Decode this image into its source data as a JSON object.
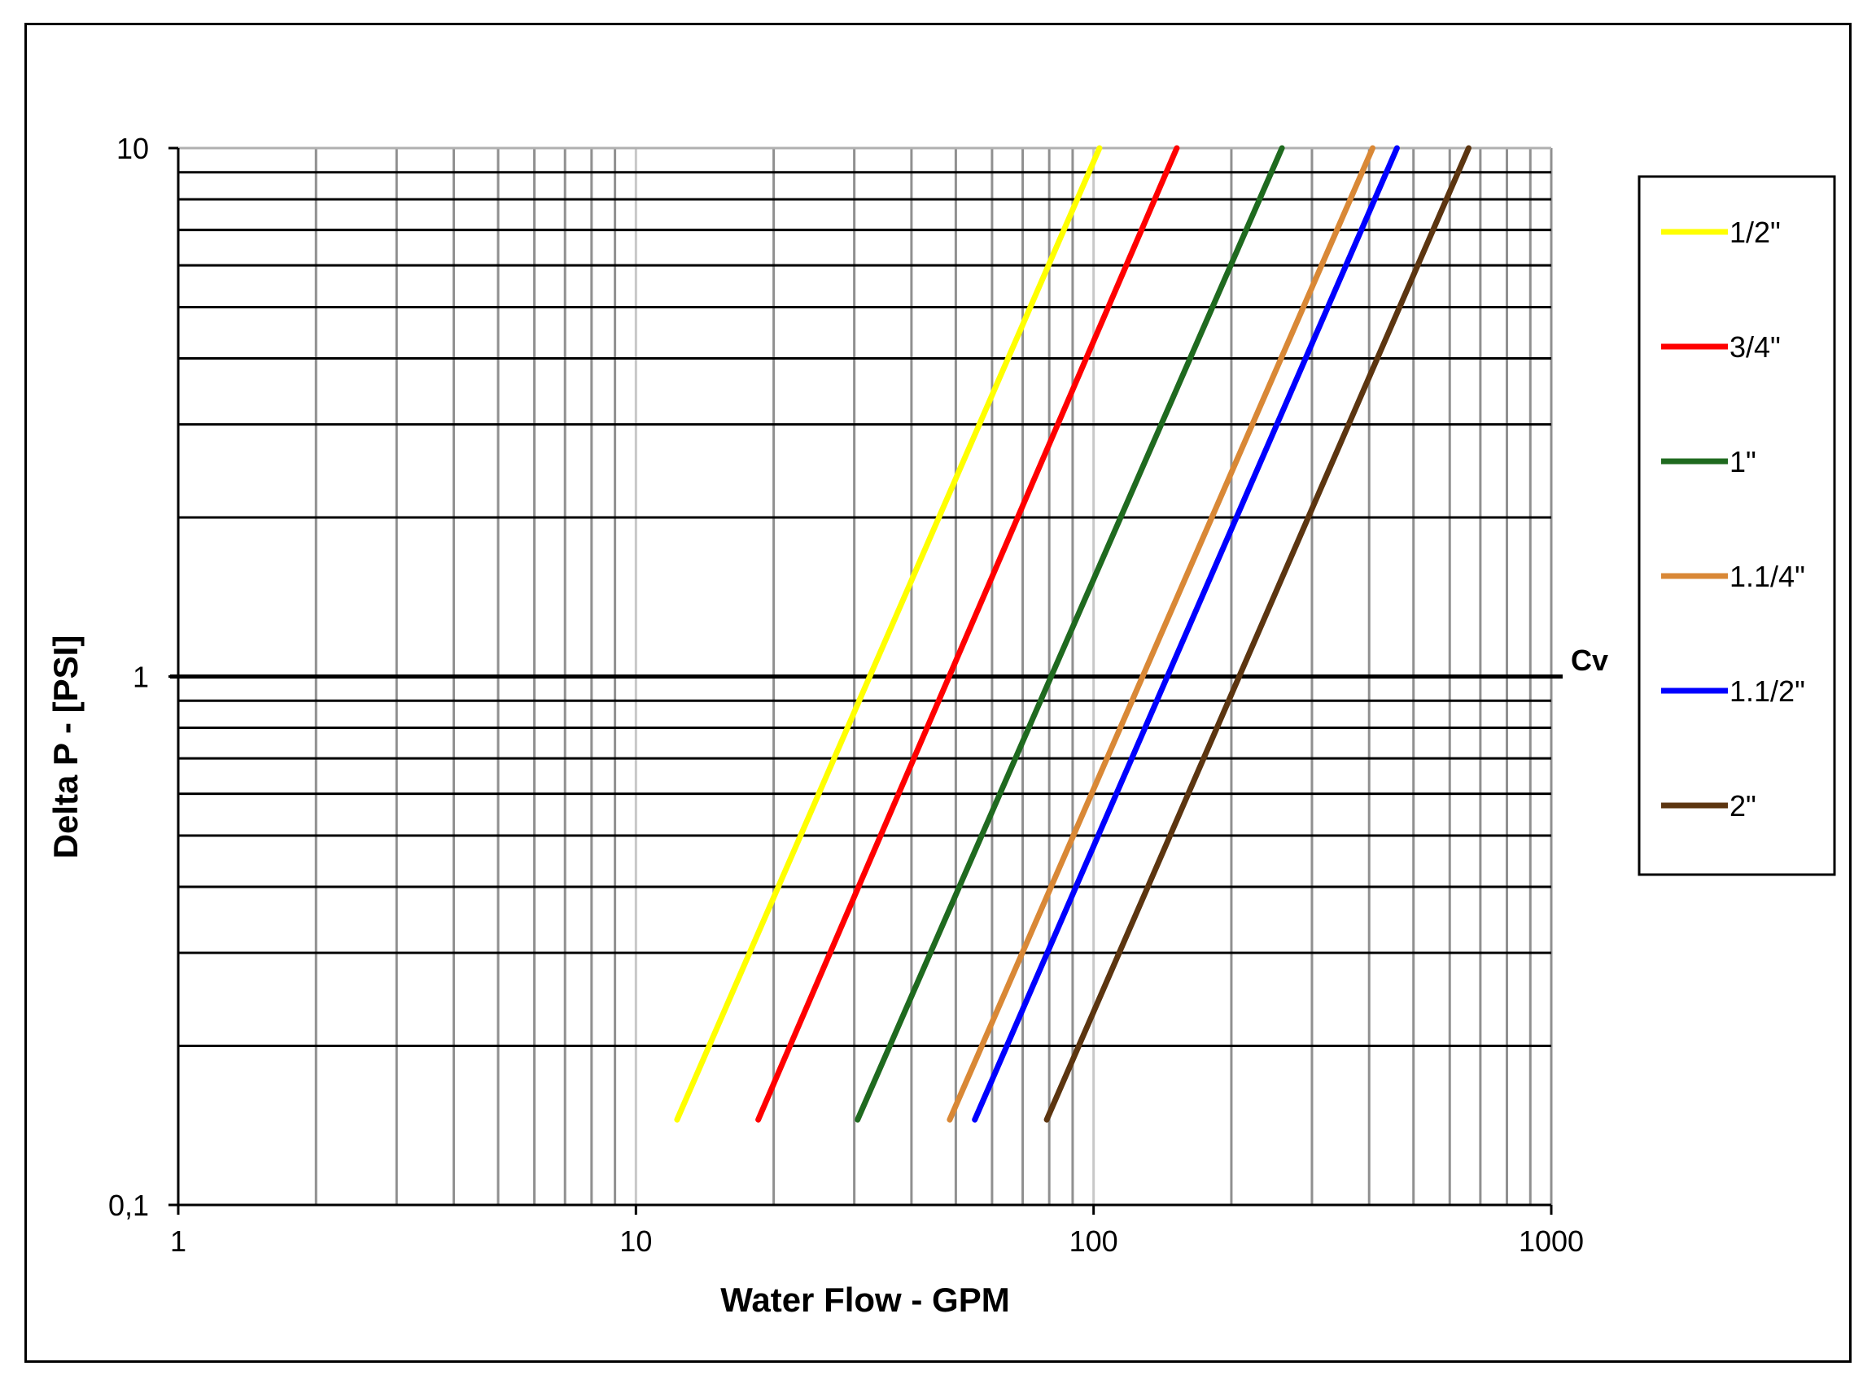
{
  "chart_data": {
    "type": "line",
    "x_scale": "log",
    "y_scale": "log",
    "xlim": [
      1,
      1000
    ],
    "ylim": [
      0.1,
      10
    ],
    "xlabel": "Water Flow  - GPM",
    "ylabel": "Delta P - [PSI]",
    "x_tick_labels": [
      "1",
      "10",
      "100",
      "1000"
    ],
    "x_tick_values": [
      1,
      10,
      100,
      1000
    ],
    "y_tick_labels": [
      "0,1",
      "1",
      "10"
    ],
    "y_tick_values": [
      0.1,
      1,
      10
    ],
    "grid": true,
    "legend_position": "right",
    "annotation": {
      "text": "Cv",
      "y": 1
    },
    "series": [
      {
        "name": "1/2\"",
        "color": "#ffff00",
        "x": [
          12.3,
          103
        ],
        "y": [
          0.145,
          10
        ]
      },
      {
        "name": "3/4\"",
        "color": "#ff0000",
        "x": [
          18.5,
          152
        ],
        "y": [
          0.145,
          10
        ]
      },
      {
        "name": "1\"",
        "color": "#1f6a1f",
        "x": [
          30.5,
          258
        ],
        "y": [
          0.145,
          10
        ]
      },
      {
        "name": "1.1/4\"",
        "color": "#d98836",
        "x": [
          48.5,
          407
        ],
        "y": [
          0.145,
          10
        ]
      },
      {
        "name": "1.1/2\"",
        "color": "#0000ff",
        "x": [
          55,
          460
        ],
        "y": [
          0.145,
          10
        ]
      },
      {
        "name": "2\"",
        "color": "#5c3510",
        "x": [
          79,
          660
        ],
        "y": [
          0.145,
          10
        ]
      }
    ]
  }
}
